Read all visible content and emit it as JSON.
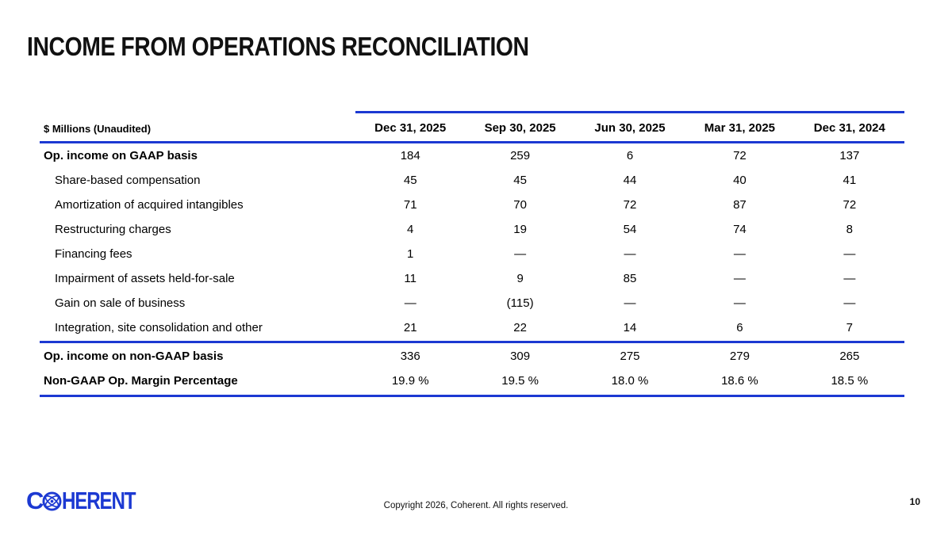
{
  "slide": {
    "title": "INCOME FROM OPERATIONS RECONCILIATION",
    "footer": {
      "copyright": "Copyright 2026, Coherent. All rights reserved.",
      "page_number": "10",
      "logo": {
        "prefix": "C",
        "suffix": "HERENT",
        "icon": "atom-globe-icon"
      }
    }
  },
  "colors": {
    "accent_blue": "#1c39d2",
    "text_black": "#000000"
  },
  "table": {
    "unit_label": "$ Millions (Unaudited)",
    "columns": [
      "Dec 31, 2025",
      "Sep 30, 2025",
      "Jun 30, 2025",
      "Mar 31, 2025",
      "Dec 31, 2024"
    ],
    "rows": [
      {
        "label": "Op. income on GAAP basis",
        "bold": true,
        "indent": false,
        "values": [
          "184",
          "259",
          "6",
          "72",
          "137"
        ]
      },
      {
        "label": "Share-based compensation",
        "bold": false,
        "indent": true,
        "values": [
          "45",
          "45",
          "44",
          "40",
          "41"
        ]
      },
      {
        "label": "Amortization of acquired intangibles",
        "bold": false,
        "indent": true,
        "values": [
          "71",
          "70",
          "72",
          "87",
          "72"
        ]
      },
      {
        "label": "Restructuring charges",
        "bold": false,
        "indent": true,
        "values": [
          "4",
          "19",
          "54",
          "74",
          "8"
        ]
      },
      {
        "label": "Financing fees",
        "bold": false,
        "indent": true,
        "values": [
          "1",
          "—",
          "—",
          "—",
          "—"
        ]
      },
      {
        "label": "Impairment of assets held-for-sale",
        "bold": false,
        "indent": true,
        "values": [
          "11",
          "9",
          "85",
          "—",
          "—"
        ]
      },
      {
        "label": "Gain on sale of business",
        "bold": false,
        "indent": true,
        "values": [
          "—",
          "(115)",
          "—",
          "—",
          "—"
        ]
      },
      {
        "label": "Integration, site consolidation and other",
        "bold": false,
        "indent": true,
        "values": [
          "21",
          "22",
          "14",
          "6",
          "7"
        ]
      }
    ],
    "totals": [
      {
        "label": "Op. income on non-GAAP basis",
        "values": [
          "336",
          "309",
          "275",
          "279",
          "265"
        ]
      },
      {
        "label": "Non-GAAP Op. Margin Percentage",
        "values": [
          "19.9 %",
          "19.5 %",
          "18.0 %",
          "18.6 %",
          "18.5 %"
        ]
      }
    ]
  }
}
